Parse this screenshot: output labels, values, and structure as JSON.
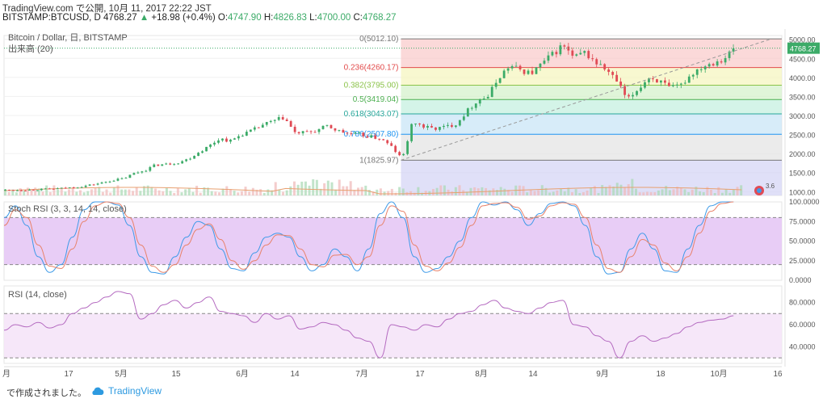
{
  "header": {
    "line1": "TradingView.com で公開, 10月 11, 2017 22:22 JST",
    "symbol": "BITSTAMP:BTCUSD, D",
    "last": "4768.27",
    "change_arrow": "▲",
    "change": "+18.98 (+0.4%)",
    "o_label": "O:",
    "o": "4747.90",
    "h_label": "H:",
    "h": "4826.83",
    "l_label": "L:",
    "l": "4700.00",
    "c_label": "C:",
    "c": "4768.27"
  },
  "footer": {
    "made_with": "で作成されました。",
    "brand": "TradingView"
  },
  "chart_data": [
    {
      "type": "candlestick",
      "title": "Bitcoin / Dollar, 日, BITSTAMP",
      "volume_label": "出来高 (20)",
      "last_price": 4768.27,
      "last_price_label": "4768.27",
      "ylim": [
        900,
        5100
      ],
      "y_ticks": [
        1000,
        1500,
        2000,
        2500,
        3000,
        3500,
        4000,
        4500,
        5000
      ],
      "y_tick_labels": [
        "1000.00",
        "1500.00",
        "2000.00",
        "2500.00",
        "3000.00",
        "3500.00",
        "4000.00",
        "4500.00",
        "5000.00"
      ],
      "x_labels": [
        "月",
        "17",
        "5月",
        "15",
        "6月",
        "14",
        "7月",
        "17",
        "8月",
        "14",
        "9月",
        "18",
        "10月",
        "16"
      ],
      "close_path": [
        [
          0,
          1040
        ],
        [
          10,
          1050
        ],
        [
          20,
          1080
        ],
        [
          28,
          1130
        ],
        [
          32,
          1180
        ],
        [
          36,
          1230
        ],
        [
          40,
          1300
        ],
        [
          44,
          1340
        ],
        [
          48,
          1480
        ],
        [
          52,
          1560
        ],
        [
          56,
          1700
        ],
        [
          60,
          1720
        ],
        [
          64,
          1760
        ],
        [
          68,
          1850
        ],
        [
          72,
          2030
        ],
        [
          76,
          2200
        ],
        [
          80,
          2400
        ],
        [
          84,
          2330
        ],
        [
          88,
          2500
        ],
        [
          92,
          2600
        ],
        [
          96,
          2750
        ],
        [
          100,
          2850
        ],
        [
          104,
          2950
        ],
        [
          108,
          2540
        ],
        [
          112,
          2550
        ],
        [
          116,
          2600
        ],
        [
          120,
          2720
        ],
        [
          124,
          2600
        ],
        [
          128,
          2520
        ],
        [
          132,
          2500
        ],
        [
          136,
          2440
        ],
        [
          140,
          2390
        ],
        [
          144,
          2180
        ],
        [
          148,
          1850
        ],
        [
          152,
          2850
        ],
        [
          156,
          2700
        ],
        [
          160,
          2650
        ],
        [
          164,
          2700
        ],
        [
          168,
          2780
        ],
        [
          172,
          3100
        ],
        [
          176,
          3400
        ],
        [
          180,
          3500
        ],
        [
          184,
          4000
        ],
        [
          188,
          4300
        ],
        [
          192,
          4200
        ],
        [
          196,
          4100
        ],
        [
          200,
          4350
        ],
        [
          204,
          4600
        ],
        [
          208,
          4850
        ],
        [
          212,
          4500
        ],
        [
          216,
          4650
        ],
        [
          220,
          4400
        ],
        [
          224,
          4200
        ],
        [
          228,
          3900
        ],
        [
          232,
          3400
        ],
        [
          236,
          3700
        ],
        [
          240,
          4000
        ],
        [
          244,
          3900
        ],
        [
          248,
          3700
        ],
        [
          252,
          3800
        ],
        [
          256,
          4100
        ],
        [
          260,
          4300
        ],
        [
          264,
          4400
        ],
        [
          268,
          4500
        ],
        [
          272,
          4768
        ]
      ],
      "fibonacci": [
        {
          "ratio_label": "0",
          "price_label": "5012.10",
          "value": 5012.1,
          "color": "#787878"
        },
        {
          "ratio_label": "0.236",
          "price_label": "4260.17",
          "value": 4260.17,
          "color": "#e24a4a"
        },
        {
          "ratio_label": "0.382",
          "price_label": "3795.00",
          "value": 3795.0,
          "color": "#8bc34a"
        },
        {
          "ratio_label": "0.5",
          "price_label": "3419.04",
          "value": 3419.04,
          "color": "#4caf50"
        },
        {
          "ratio_label": "0.618",
          "price_label": "3043.07",
          "value": 3043.07,
          "color": "#26a69a"
        },
        {
          "ratio_label": "0.786",
          "price_label": "2507.80",
          "value": 2507.8,
          "color": "#2196f3"
        },
        {
          "ratio_label": "1",
          "price_label": "1825.97",
          "value": 1825.97,
          "color": "#787878"
        }
      ],
      "fib_start_day": 148,
      "fib_fill_colors": [
        "#f9cccc",
        "#f5f5c0",
        "#d6f2cc",
        "#c6f0e0",
        "#c9e6f7",
        "#e4e4e4",
        "#d6d6f5"
      ],
      "volume_badge": "3.6"
    },
    {
      "type": "line",
      "title": "Stoch RSI (3, 3, 14, 14, close)",
      "ylim": [
        0,
        100
      ],
      "y_ticks": [
        0,
        25,
        50,
        75,
        100
      ],
      "y_tick_labels": [
        "0.0000",
        "25.0000",
        "50.0000",
        "75.0000",
        "100.0000"
      ],
      "band": [
        20,
        80
      ],
      "series": [
        {
          "color": "#3d9ae8",
          "values": [
            80,
            95,
            70,
            30,
            10,
            20,
            55,
            90,
            100,
            100,
            96,
            70,
            30,
            10,
            8,
            30,
            55,
            75,
            70,
            40,
            15,
            12,
            35,
            55,
            60,
            55,
            30,
            12,
            20,
            40,
            30,
            12,
            40,
            85,
            100,
            80,
            30,
            10,
            15,
            30,
            50,
            80,
            100,
            96,
            100,
            90,
            70,
            85,
            98,
            100,
            95,
            70,
            30,
            8,
            10,
            40,
            60,
            40,
            12,
            10,
            40,
            70,
            95,
            100,
            100
          ]
        },
        {
          "color": "#e8826a",
          "values": [
            70,
            90,
            80,
            45,
            18,
            15,
            40,
            75,
            95,
            100,
            98,
            80,
            45,
            18,
            10,
            20,
            45,
            65,
            72,
            52,
            25,
            14,
            25,
            45,
            58,
            57,
            40,
            20,
            17,
            32,
            33,
            20,
            30,
            70,
            95,
            88,
            45,
            18,
            12,
            22,
            42,
            70,
            95,
            98,
            99,
            93,
            78,
            82,
            95,
            99,
            97,
            80,
            45,
            15,
            10,
            30,
            52,
            45,
            22,
            12,
            30,
            60,
            88,
            98,
            100
          ]
        }
      ]
    },
    {
      "type": "line",
      "title": "RSI (14, close)",
      "ylim": [
        25,
        95
      ],
      "y_ticks": [
        40,
        60,
        80
      ],
      "y_tick_labels": [
        "40.0000",
        "60.0000",
        "80.0000"
      ],
      "band": [
        30,
        70
      ],
      "series": [
        {
          "color": "#b46ac0",
          "values": [
            55,
            60,
            58,
            62,
            57,
            60,
            70,
            75,
            80,
            85,
            90,
            88,
            65,
            70,
            78,
            82,
            75,
            80,
            85,
            72,
            70,
            68,
            62,
            70,
            65,
            68,
            56,
            58,
            62,
            60,
            55,
            48,
            45,
            30,
            60,
            58,
            55,
            60,
            58,
            65,
            70,
            72,
            78,
            82,
            75,
            72,
            70,
            75,
            80,
            82,
            60,
            58,
            50,
            45,
            30,
            45,
            50,
            45,
            48,
            52,
            58,
            62,
            64,
            65,
            68
          ]
        }
      ]
    }
  ]
}
